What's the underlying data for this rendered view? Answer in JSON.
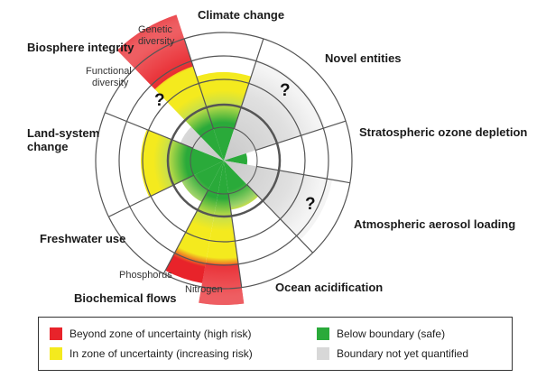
{
  "labels": {
    "climate": "Climate change",
    "novel": "Novel entities",
    "ozone": "Stratospheric ozone depletion",
    "aerosol": "Atmospheric aerosol loading",
    "ocean": "Ocean acidification",
    "biochem": "Biochemical flows",
    "freshwater": "Freshwater use",
    "land_1": "Land-system",
    "land_2": "change",
    "biosphere": "Biosphere integrity",
    "genetic_1": "Genetic",
    "genetic_2": "diversity",
    "functional_1": "Functional",
    "functional_2": "diversity",
    "phosphorus": "Phosphorus",
    "nitrogen": "Nitrogen",
    "unknown": "?"
  },
  "legend": [
    {
      "label": "Beyond zone of uncertainty (high risk)",
      "color": "#e8232a"
    },
    {
      "label": "In zone of uncertainty (increasing risk)",
      "color": "#f4ea1e"
    },
    {
      "label": "Below boundary (safe)",
      "color": "#2aaa3a"
    },
    {
      "label": "Boundary not yet quantified",
      "color": "#d8d8d8"
    }
  ],
  "colors": {
    "red": "#e8232a",
    "yellow": "#f4ea1e",
    "green": "#2aaa3a",
    "grey": "#d8d8d8",
    "grid": "#555555"
  }
}
